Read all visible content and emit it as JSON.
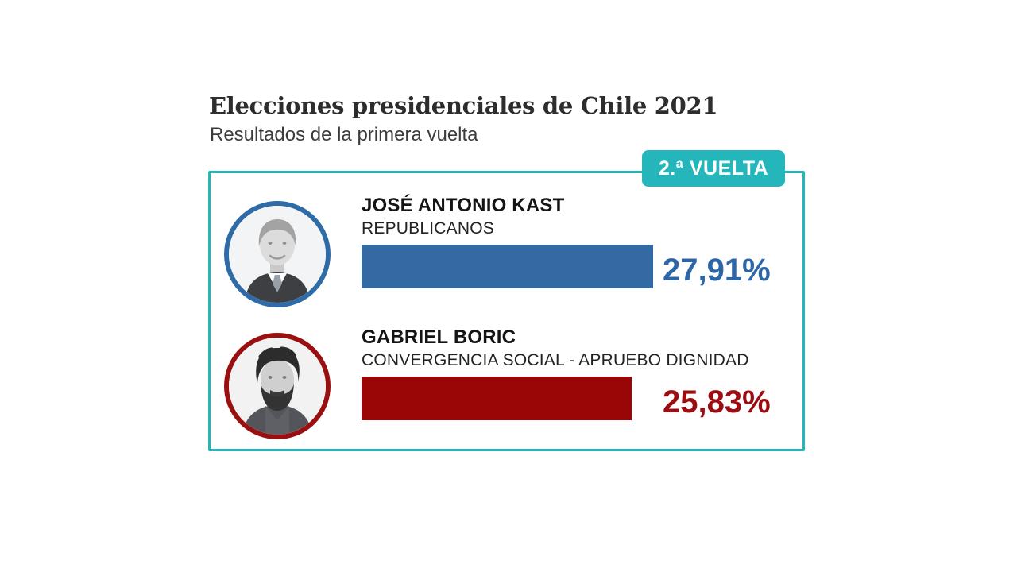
{
  "header": {
    "title": "Elecciones presidenciales de Chile 2021",
    "subtitle": "Resultados de la primera vuelta"
  },
  "badge": {
    "label": "2.ª VUELTA"
  },
  "theme": {
    "accent_teal": "#25b6bc",
    "background": "#ffffff",
    "title_color": "#2d2d2d"
  },
  "chart_data": {
    "type": "bar",
    "orientation": "horizontal",
    "title": "Elecciones presidenciales de Chile 2021",
    "subtitle": "Resultados de la primera vuelta",
    "unit": "%",
    "xlim": [
      0,
      27.91
    ],
    "grid": false,
    "legend": false,
    "categories": [
      "JOSÉ ANTONIO KAST",
      "GABRIEL BORIC"
    ],
    "values": [
      27.91,
      25.83
    ],
    "bars": [
      {
        "name": "JOSÉ ANTONIO KAST",
        "party": "REPUBLICANOS",
        "value": 27.91,
        "label": "27,91%",
        "bar_color": "#336aa4",
        "value_color": "#2d66a6",
        "photo_border_color": "#2f6ba6",
        "photo": "kast-portrait"
      },
      {
        "name": "GABRIEL BORIC",
        "party": "CONVERGENCIA SOCIAL - APRUEBO DIGNIDAD",
        "value": 25.83,
        "label": "25,83%",
        "bar_color": "#9a0606",
        "value_color": "#9c0d12",
        "photo_border_color": "#9a0f0f",
        "photo": "boric-portrait"
      }
    ]
  }
}
